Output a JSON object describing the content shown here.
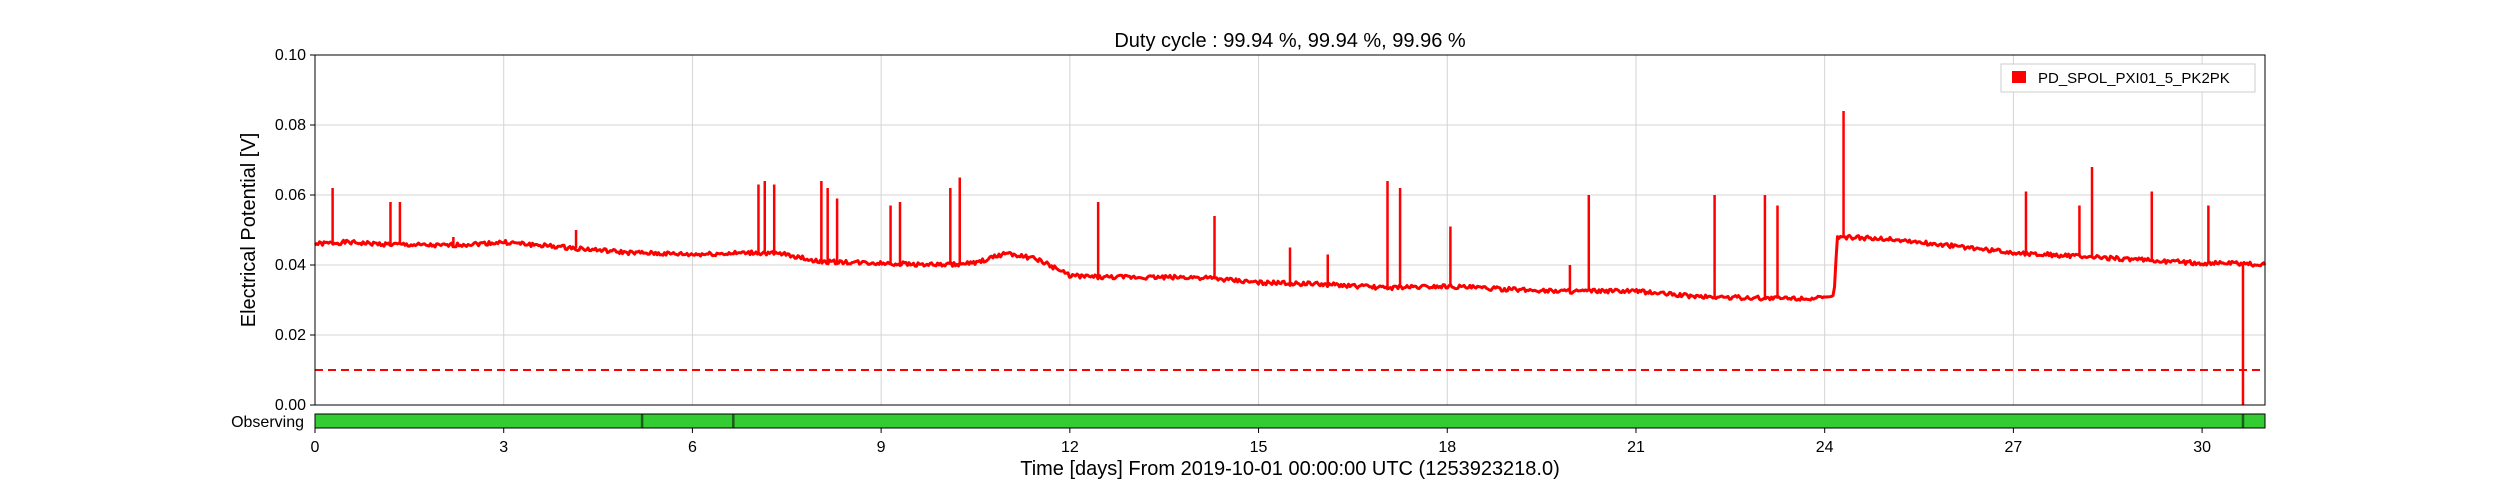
{
  "chart_data": {
    "type": "line",
    "title": "Duty cycle : 99.94 %, 99.94 %, 99.96 %",
    "xlabel": "Time [days] From 2019-10-01 00:00:00 UTC (1253923218.0)",
    "ylabel": "Electrical Potential [V]",
    "xlim": [
      0,
      31
    ],
    "ylim": [
      0,
      0.1
    ],
    "x_ticks": [
      0,
      3,
      6,
      9,
      12,
      15,
      18,
      21,
      24,
      27,
      30
    ],
    "x_tick_labels": [
      "0",
      "3",
      "6",
      "9",
      "12",
      "15",
      "18",
      "21",
      "24",
      "27",
      "30"
    ],
    "y_ticks": [
      0,
      0.02,
      0.04,
      0.06,
      0.08,
      0.1
    ],
    "y_tick_labels": [
      "0.00",
      "0.02",
      "0.04",
      "0.06",
      "0.08",
      "0.10"
    ],
    "grid": true,
    "legend_position": "top-right",
    "series": [
      {
        "name": "PD_SPOL_PXI01_5_PK2PK",
        "color": "#ff0000",
        "baseline": {
          "x": [
            0,
            0.5,
            1,
            2,
            3,
            4,
            5,
            6,
            7,
            7.5,
            8,
            9,
            10,
            10.5,
            11,
            11.5,
            12,
            12.5,
            14,
            15,
            16,
            17,
            18,
            19,
            20,
            21,
            22,
            23,
            24,
            24.15,
            24.2,
            25,
            26,
            27,
            28,
            29,
            30,
            30.5,
            31
          ],
          "y": [
            0.046,
            0.0465,
            0.046,
            0.0455,
            0.0465,
            0.045,
            0.0435,
            0.043,
            0.0435,
            0.043,
            0.041,
            0.0405,
            0.04,
            0.0405,
            0.0435,
            0.0415,
            0.037,
            0.0365,
            0.0365,
            0.035,
            0.0345,
            0.0335,
            0.034,
            0.033,
            0.0325,
            0.0325,
            0.031,
            0.0305,
            0.0305,
            0.031,
            0.048,
            0.0475,
            0.0455,
            0.0435,
            0.0425,
            0.0415,
            0.0405,
            0.0405,
            0.04
          ]
        },
        "spikes": {
          "x": [
            0.28,
            1.2,
            1.35,
            2.2,
            4.15,
            7.05,
            7.15,
            7.3,
            8.05,
            8.15,
            8.3,
            9.15,
            9.3,
            10.1,
            10.25,
            12.45,
            14.3,
            15.5,
            16.1,
            17.05,
            17.25,
            18.05,
            19.95,
            20.25,
            22.25,
            23.05,
            23.25,
            24.25,
            24.3,
            27.2,
            28.05,
            28.25,
            29.2,
            30.1
          ],
          "y": [
            0.062,
            0.058,
            0.058,
            0.048,
            0.05,
            0.063,
            0.064,
            0.063,
            0.064,
            0.062,
            0.059,
            0.057,
            0.058,
            0.062,
            0.065,
            0.058,
            0.054,
            0.045,
            0.043,
            0.064,
            0.062,
            0.051,
            0.04,
            0.06,
            0.06,
            0.06,
            0.057,
            0.048,
            0.084,
            0.061,
            0.057,
            0.068,
            0.061,
            0.057
          ]
        },
        "dips": {
          "x": [
            30.65
          ],
          "y": [
            0.0
          ]
        }
      }
    ],
    "threshold": {
      "value": 0.01,
      "color": "#ff0000",
      "style": "dashed"
    },
    "state_bar": {
      "label": "Observing",
      "color": "#33cc33",
      "gap_color": "#1a5c1a",
      "gaps": [
        5.2,
        6.65,
        30.65
      ]
    }
  }
}
